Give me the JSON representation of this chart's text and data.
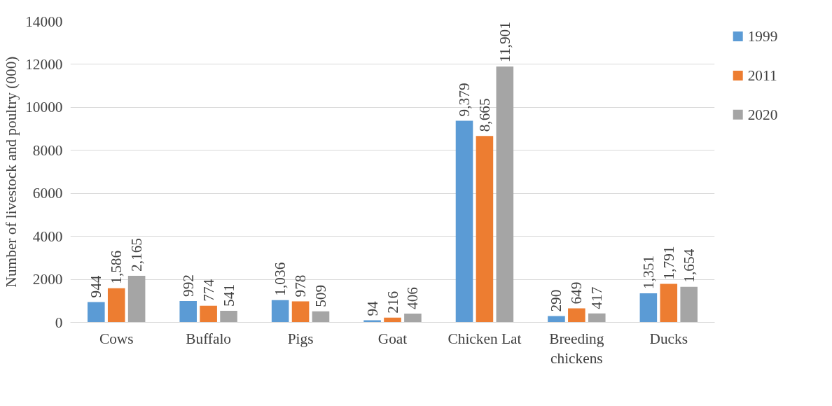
{
  "chart_data": {
    "type": "bar",
    "ylabel": "Number of livestock and poultry (000)",
    "categories": [
      "Cows",
      "Buffalo",
      "Pigs",
      "Goat",
      "Chicken Lat",
      "Breeding chickens",
      "Ducks"
    ],
    "series": [
      {
        "name": "1999",
        "color": "#5b9bd5",
        "values": [
          944,
          992,
          1036,
          94,
          9379,
          290,
          1351
        ],
        "value_labels": [
          "944",
          "992",
          "1,036",
          "94",
          "9,379",
          "290",
          "1,351"
        ]
      },
      {
        "name": "2011",
        "color": "#ed7d31",
        "values": [
          1586,
          774,
          978,
          216,
          8665,
          649,
          1791
        ],
        "value_labels": [
          "1,586",
          "774",
          "978",
          "216",
          "8,665",
          "649",
          "1,791"
        ]
      },
      {
        "name": "2020",
        "color": "#a5a5a5",
        "values": [
          2165,
          541,
          509,
          406,
          11901,
          417,
          1654
        ],
        "value_labels": [
          "2,165",
          "541",
          "509",
          "406",
          "11,901",
          "417",
          "1,654"
        ]
      }
    ],
    "ylim": [
      0,
      14000
    ],
    "yticks": [
      0,
      2000,
      4000,
      6000,
      8000,
      10000,
      12000,
      14000
    ],
    "grid": "y",
    "legend": "right"
  }
}
